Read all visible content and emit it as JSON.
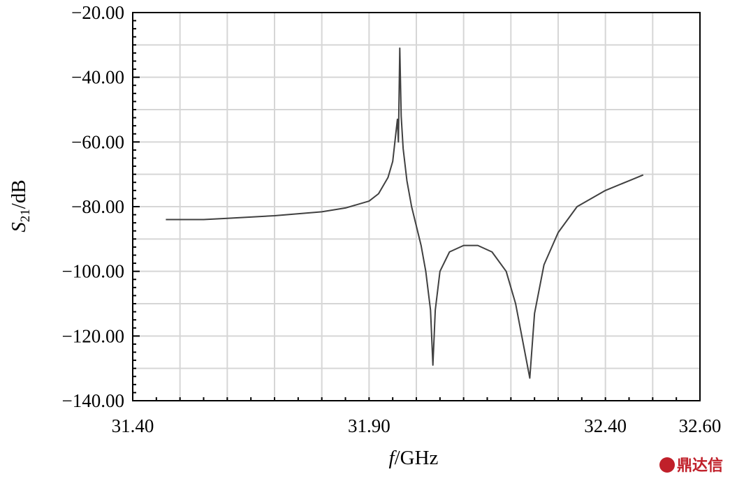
{
  "chart_data": {
    "type": "line",
    "xlabel_italic": "f",
    "xlabel_unit": "/GHz",
    "ylabel_main": "S",
    "ylabel_sub": "21",
    "ylabel_unit": "/dB",
    "xlim": [
      31.4,
      32.6
    ],
    "ylim": [
      -140,
      -20
    ],
    "x_ticks": [
      31.4,
      31.9,
      32.4,
      32.6
    ],
    "x_tick_labels": [
      "31.40",
      "31.90",
      "32.40",
      "32.60"
    ],
    "y_ticks": [
      -20,
      -40,
      -60,
      -80,
      -100,
      -120,
      -140
    ],
    "y_tick_labels": [
      "−20.00",
      "−40.00",
      "−60.00",
      "−80.00",
      "−100.00",
      "−120.00",
      "−140.00"
    ],
    "grid": true,
    "series": [
      {
        "color": "#404040",
        "points": [
          [
            31.47,
            -84.0
          ],
          [
            31.55,
            -84.0
          ],
          [
            31.6,
            -83.6
          ],
          [
            31.7,
            -82.8
          ],
          [
            31.8,
            -81.6
          ],
          [
            31.85,
            -80.4
          ],
          [
            31.9,
            -78.3
          ],
          [
            31.92,
            -76.0
          ],
          [
            31.94,
            -71.0
          ],
          [
            31.95,
            -66.0
          ],
          [
            31.96,
            -53.0
          ],
          [
            31.962,
            -60.0
          ],
          [
            31.965,
            -31.0
          ],
          [
            31.968,
            -52.0
          ],
          [
            31.972,
            -62.0
          ],
          [
            31.98,
            -72.0
          ],
          [
            31.99,
            -80.0
          ],
          [
            32.0,
            -86.0
          ],
          [
            32.01,
            -92.0
          ],
          [
            32.02,
            -100.0
          ],
          [
            32.03,
            -112.0
          ],
          [
            32.035,
            -129.0
          ],
          [
            32.04,
            -112.0
          ],
          [
            32.05,
            -100.0
          ],
          [
            32.07,
            -94.0
          ],
          [
            32.1,
            -92.0
          ],
          [
            32.13,
            -92.0
          ],
          [
            32.16,
            -94.0
          ],
          [
            32.19,
            -100.0
          ],
          [
            32.21,
            -110.0
          ],
          [
            32.24,
            -133.0
          ],
          [
            32.25,
            -113.0
          ],
          [
            32.27,
            -98.0
          ],
          [
            32.3,
            -88.0
          ],
          [
            32.34,
            -80.0
          ],
          [
            32.4,
            -75.0
          ],
          [
            32.45,
            -72.0
          ],
          [
            32.48,
            -70.2
          ]
        ]
      }
    ]
  },
  "watermark": {
    "text": "鼎达信"
  }
}
